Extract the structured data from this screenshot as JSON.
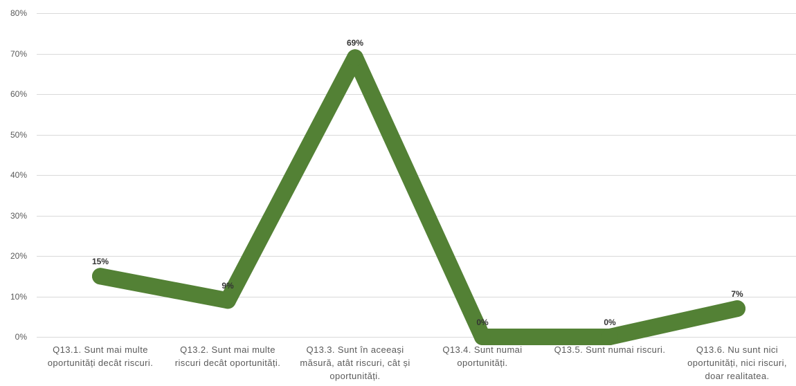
{
  "chart_data": {
    "type": "line",
    "categories": [
      "Q13.1. Sunt mai multe\noportunități decât riscuri.",
      "Q13.2. Sunt mai multe\nriscuri decât oportunități.",
      "Q13.3. Sunt în aceeași\nmăsură, atât riscuri, cât și\noportunități.",
      "Q13.4. Sunt numai\noportunități.",
      "Q13.5. Sunt numai riscuri.",
      "Q13.6. Nu sunt nici\noportunități, nici riscuri,\ndoar realitatea."
    ],
    "series": [
      {
        "values": [
          15,
          9,
          69,
          0,
          0,
          7
        ],
        "color": "#538135"
      }
    ],
    "data_labels": [
      "15%",
      "9%",
      "69%",
      "0%",
      "0%",
      "7%"
    ],
    "y_ticks": [
      0,
      10,
      20,
      30,
      40,
      50,
      60,
      70,
      80
    ],
    "y_tick_labels": [
      "0%",
      "10%",
      "20%",
      "30%",
      "40%",
      "50%",
      "60%",
      "70%",
      "80%"
    ],
    "ylim": [
      0,
      80
    ],
    "grid": true,
    "legend": "none"
  }
}
